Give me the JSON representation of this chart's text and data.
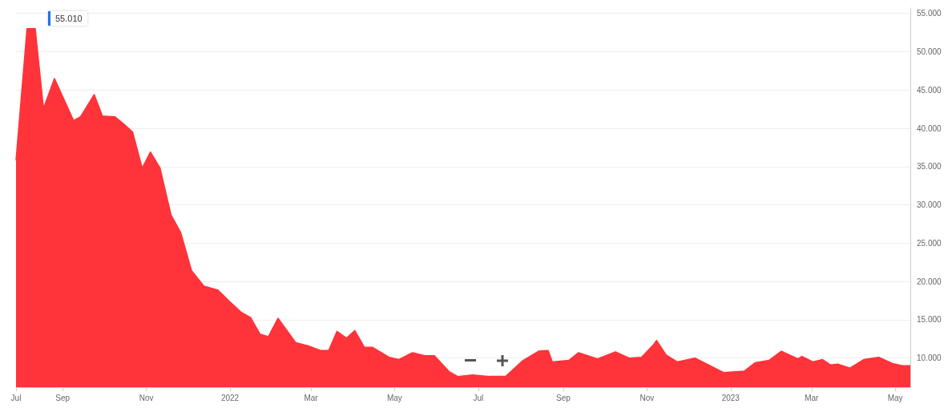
{
  "chart_data": {
    "type": "area",
    "annotations": [
      "55.010"
    ],
    "x": [
      "2021-07-29",
      "2021-08-06",
      "2021-08-12",
      "2021-08-18",
      "2021-08-26",
      "2021-09-09",
      "2021-09-14",
      "2021-09-24",
      "2021-09-30",
      "2021-10-09",
      "2021-10-16",
      "2021-10-22",
      "2021-10-29",
      "2021-11-04",
      "2021-11-11",
      "2021-11-19",
      "2021-11-26",
      "2021-12-04",
      "2021-12-13",
      "2021-12-23",
      "2021-12-31",
      "2022-01-09",
      "2022-01-16",
      "2022-01-23",
      "2022-01-29",
      "2022-02-05",
      "2022-02-18",
      "2022-02-27",
      "2022-03-08",
      "2022-03-14",
      "2022-03-20",
      "2022-03-27",
      "2022-04-02",
      "2022-04-09",
      "2022-04-15",
      "2022-04-27",
      "2022-05-04",
      "2022-05-14",
      "2022-05-23",
      "2022-05-30",
      "2022-06-10",
      "2022-06-16",
      "2022-06-27",
      "2022-07-09",
      "2022-07-21",
      "2022-08-02",
      "2022-08-14",
      "2022-08-21",
      "2022-08-24",
      "2022-09-05",
      "2022-09-12",
      "2022-09-26",
      "2022-10-09",
      "2022-10-19",
      "2022-10-28",
      "2022-11-06",
      "2022-11-08",
      "2022-11-15",
      "2022-11-23",
      "2022-12-06",
      "2022-12-27",
      "2023-01-11",
      "2023-01-19",
      "2023-01-29",
      "2023-02-07",
      "2023-02-19",
      "2023-02-22",
      "2023-03-02",
      "2023-03-09",
      "2023-03-15",
      "2023-03-20",
      "2023-03-29",
      "2023-04-08",
      "2023-04-19",
      "2023-04-29",
      "2023-05-06",
      "2023-05-12"
    ],
    "values": [
      35.8,
      53,
      53,
      42.6,
      46.5,
      41,
      41.5,
      44.4,
      41.6,
      41.5,
      40.5,
      39.5,
      34.8,
      36.9,
      34.8,
      28.7,
      26.4,
      21.4,
      19.4,
      18.9,
      17.5,
      16,
      15.3,
      13.1,
      12.8,
      15.2,
      12,
      11.6,
      11,
      11,
      13.5,
      12.6,
      13.6,
      11.4,
      11.4,
      10.1,
      9.8,
      10.7,
      10.3,
      10.3,
      8.2,
      7.6,
      7.8,
      7.6,
      7.6,
      9.6,
      10.9,
      11,
      9.5,
      9.7,
      10.7,
      9.9,
      10.8,
      10,
      10.1,
      11.8,
      12.3,
      10.4,
      9.5,
      10,
      8.1,
      8.3,
      9.4,
      9.7,
      10.9,
      9.9,
      10.2,
      9.5,
      9.8,
      9.1,
      9.2,
      8.7,
      9.8,
      10.1,
      9.3,
      9,
      9
    ],
    "color": "#ff333a",
    "ylim": [
      6.2,
      55.7
    ],
    "yticks": [
      {
        "value": 10,
        "label": "10.000"
      },
      {
        "value": 15,
        "label": "15.000"
      },
      {
        "value": 20,
        "label": "20.000"
      },
      {
        "value": 25,
        "label": "25.000"
      },
      {
        "value": 30,
        "label": "30.000"
      },
      {
        "value": 35,
        "label": "35.000"
      },
      {
        "value": 40,
        "label": "40.000"
      },
      {
        "value": 45,
        "label": "45.000"
      },
      {
        "value": 50,
        "label": "50.000"
      },
      {
        "value": 55,
        "label": "55.000"
      }
    ],
    "xlim": [
      "2021-07-29",
      "2023-05-12"
    ],
    "xticks": [
      {
        "value": "2021-07-29",
        "label": "Jul"
      },
      {
        "value": "2021-09-01",
        "label": "Sep"
      },
      {
        "value": "2021-11-01",
        "label": "Nov"
      },
      {
        "value": "2022-01-01",
        "label": "2022"
      },
      {
        "value": "2022-03-01",
        "label": "Mar"
      },
      {
        "value": "2022-05-01",
        "label": "May"
      },
      {
        "value": "2022-07-01",
        "label": "Jul"
      },
      {
        "value": "2022-09-01",
        "label": "Sep"
      },
      {
        "value": "2022-11-01",
        "label": "Nov"
      },
      {
        "value": "2023-01-01",
        "label": "2023"
      },
      {
        "value": "2023-03-01",
        "label": "Mar"
      },
      {
        "value": "2023-05-01",
        "label": "May"
      }
    ],
    "grid": "y",
    "marker": "none"
  }
}
